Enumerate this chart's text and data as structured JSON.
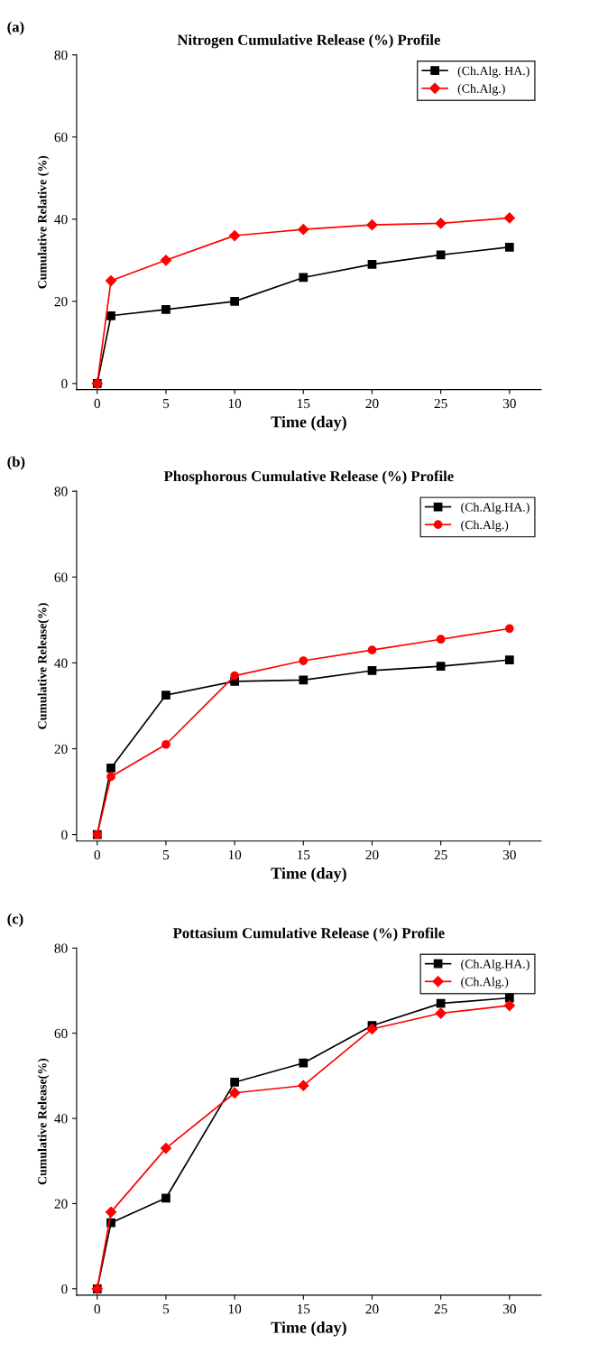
{
  "chart_data": [
    {
      "type": "line",
      "title": "Nitrogen Cumulative Release (%) Profile",
      "xlabel": "Time (day)",
      "ylabel": "Cumulative Relative (%)",
      "annotations": [
        "(a)"
      ],
      "x": [
        0,
        1,
        5,
        10,
        15,
        20,
        25,
        30
      ],
      "xlim": [
        -1.5,
        32.3
      ],
      "xticks": [
        0,
        5,
        10,
        15,
        20,
        25,
        30
      ],
      "ylim": [
        -1.5,
        80
      ],
      "yticks": [
        0,
        20,
        40,
        60,
        80
      ],
      "grid": false,
      "legend": "top right",
      "line_style": "solid",
      "series": [
        {
          "name": "(Ch.Alg. HA.)",
          "color": "#000000",
          "marker": "square",
          "values": [
            0,
            16.5,
            18,
            20,
            25.8,
            29,
            31.3,
            33.2
          ]
        },
        {
          "name": "(Ch.Alg.)",
          "color": "#ff0000",
          "marker": "diamond",
          "values": [
            0,
            25,
            30,
            36,
            37.5,
            38.6,
            39,
            40.3
          ]
        }
      ]
    },
    {
      "type": "line",
      "title": "Phosphorous Cumulative Release (%) Profile",
      "xlabel": "Time (day)",
      "ylabel": "Cumulative Release(%)",
      "annotations": [
        "(b)"
      ],
      "x": [
        0,
        1,
        5,
        10,
        15,
        20,
        25,
        30
      ],
      "xlim": [
        -1.5,
        32.3
      ],
      "xticks": [
        0,
        5,
        10,
        15,
        20,
        25,
        30
      ],
      "ylim": [
        -1.5,
        80
      ],
      "yticks": [
        0,
        20,
        40,
        60,
        80
      ],
      "grid": false,
      "legend": "top right",
      "line_style": "solid",
      "series": [
        {
          "name": "(Ch.Alg.HA.)",
          "color": "#000000",
          "marker": "square",
          "values": [
            0,
            15.5,
            32.5,
            35.7,
            36,
            38.2,
            39.2,
            40.7
          ]
        },
        {
          "name": "(Ch.Alg.)",
          "color": "#ff0000",
          "marker": "circle",
          "values": [
            0,
            13.5,
            21,
            37,
            40.5,
            43,
            45.5,
            48
          ]
        }
      ]
    },
    {
      "type": "line",
      "title": "Pottasium Cumulative Release (%) Profile",
      "xlabel": "Time (day)",
      "ylabel": "Cumulative Release(%)",
      "annotations": [
        "(c)"
      ],
      "x": [
        0,
        1,
        5,
        10,
        15,
        20,
        25,
        30
      ],
      "xlim": [
        -1.5,
        32.3
      ],
      "xticks": [
        0,
        5,
        10,
        15,
        20,
        25,
        30
      ],
      "ylim": [
        -1.5,
        80
      ],
      "yticks": [
        0,
        20,
        40,
        60,
        80
      ],
      "grid": false,
      "legend": "top right",
      "line_style": "solid",
      "series": [
        {
          "name": "(Ch.Alg.HA.)",
          "color": "#000000",
          "marker": "square",
          "values": [
            0,
            15.5,
            21.3,
            48.5,
            53,
            61.8,
            67,
            68.3
          ]
        },
        {
          "name": "(Ch.Alg.)",
          "color": "#ff0000",
          "marker": "diamond",
          "values": [
            0,
            18,
            33,
            46,
            47.7,
            61,
            64.7,
            66.5
          ]
        }
      ]
    }
  ]
}
